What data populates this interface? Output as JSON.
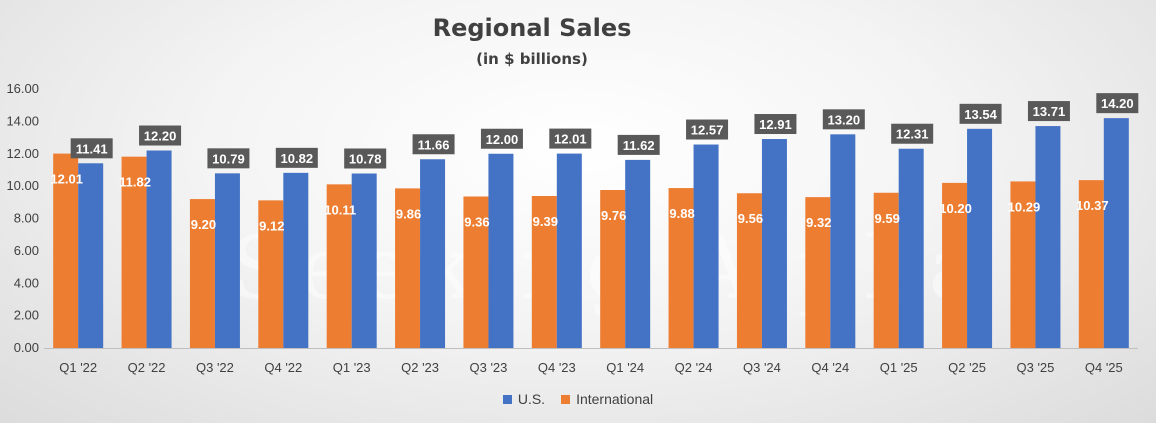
{
  "chart_data": {
    "type": "bar",
    "title": "Regional Sales",
    "subtitle": "(in $ billions)",
    "xlabel": "",
    "ylabel": "",
    "ylim": [
      0,
      16
    ],
    "yticks": [
      "0.00",
      "2.00",
      "4.00",
      "6.00",
      "8.00",
      "10.00",
      "12.00",
      "14.00",
      "16.00"
    ],
    "categories": [
      "Q1 '22",
      "Q2 '22",
      "Q3 '22",
      "Q4 '22",
      "Q1 '23",
      "Q2 '23",
      "Q3 '23",
      "Q4 '23",
      "Q1 '24",
      "Q2 '24",
      "Q3 '24",
      "Q4 '24",
      "Q1 '25",
      "Q2 '25",
      "Q3 '25",
      "Q4 '25"
    ],
    "series": [
      {
        "name": "International",
        "color": "#ED7D31",
        "values": [
          12.01,
          11.82,
          9.2,
          9.12,
          10.11,
          9.86,
          9.36,
          9.39,
          9.76,
          9.88,
          9.56,
          9.32,
          9.59,
          10.2,
          10.29,
          10.37
        ],
        "labels": [
          "12.01",
          "11.82",
          "9.20",
          "9.12",
          "10.11",
          "9.86",
          "9.36",
          "9.39",
          "9.76",
          "9.88",
          "9.56",
          "9.32",
          "9.59",
          "10.20",
          "10.29",
          "10.37"
        ]
      },
      {
        "name": "U.S.",
        "color": "#4472C4",
        "values": [
          11.41,
          12.2,
          10.79,
          10.82,
          10.78,
          11.66,
          12.0,
          12.01,
          11.62,
          12.57,
          12.91,
          13.2,
          12.31,
          13.54,
          13.71,
          14.2
        ],
        "labels": [
          "11.41",
          "12.20",
          "10.79",
          "10.82",
          "10.78",
          "11.66",
          "12.00",
          "12.01",
          "11.62",
          "12.57",
          "12.91",
          "13.20",
          "12.31",
          "13.54",
          "13.71",
          "14.20"
        ]
      }
    ],
    "legend": [
      {
        "name": "U.S.",
        "color": "#4472C4"
      },
      {
        "name": "International",
        "color": "#ED7D31"
      }
    ],
    "legend_position": "bottom",
    "watermark": "Seeking Alpha",
    "grid": false
  }
}
